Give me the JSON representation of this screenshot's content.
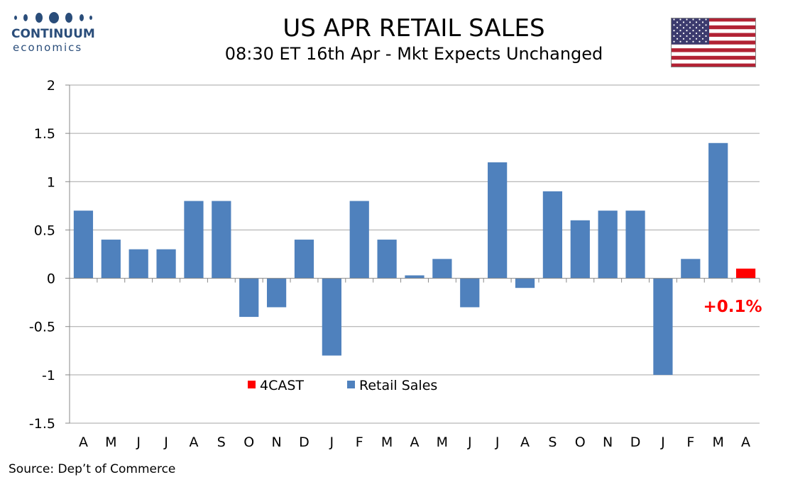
{
  "logo": {
    "word": "CONTINUUM",
    "sub": "economics"
  },
  "header": {
    "title": "US APR RETAIL SALES",
    "subtitle": "08:30 ET 16th Apr - Mkt Expects Unchanged"
  },
  "source": "Source: Dep’t of Commerce",
  "colors": {
    "retail": "#4f81bd",
    "forecast": "#ff0000",
    "brand": "#2a4d7a",
    "grid": "#a6a6a6"
  },
  "chart_data": {
    "type": "bar",
    "categories": [
      "A",
      "M",
      "J",
      "J",
      "A",
      "S",
      "O",
      "N",
      "D",
      "J",
      "F",
      "M",
      "A",
      "M",
      "J",
      "J",
      "A",
      "S",
      "O",
      "N",
      "D",
      "J",
      "F",
      "M",
      "A"
    ],
    "series": [
      {
        "name": "Retail Sales",
        "values": [
          0.7,
          0.4,
          0.3,
          0.3,
          0.8,
          0.8,
          -0.4,
          -0.3,
          0.4,
          -0.8,
          0.8,
          0.4,
          0.03,
          0.2,
          -0.3,
          1.2,
          -0.1,
          0.9,
          0.6,
          0.7,
          0.7,
          -1.0,
          0.2,
          1.4,
          null
        ]
      },
      {
        "name": "4CAST",
        "values": [
          null,
          null,
          null,
          null,
          null,
          null,
          null,
          null,
          null,
          null,
          null,
          null,
          null,
          null,
          null,
          null,
          null,
          null,
          null,
          null,
          null,
          null,
          null,
          null,
          0.1
        ]
      }
    ],
    "ylim": [
      -1.5,
      2
    ],
    "yticks": [
      2,
      1.5,
      1,
      0.5,
      0,
      -0.5,
      -1,
      -1.5
    ],
    "yticklabels": [
      "2",
      "1.5",
      "1",
      "0.5",
      "0",
      "-0.5",
      "-1",
      "-1.5"
    ],
    "grid": true,
    "legend": {
      "position": "bottom-center",
      "entries": [
        "4CAST",
        "Retail Sales"
      ]
    },
    "annotation": "+0.1%"
  }
}
